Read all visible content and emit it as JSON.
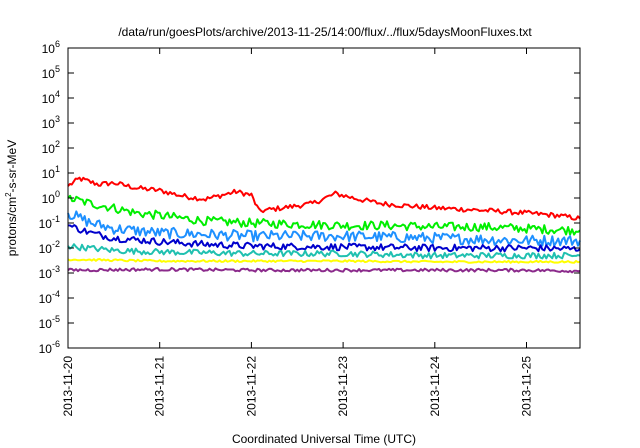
{
  "chart_data": {
    "type": "line",
    "title": "/data/run/goesPlots/archive/2013-11-25/14:00/flux/../flux/5daysMoonFluxes.txt",
    "xlabel": "Coordinated Universal Time (UTC)",
    "ylabel": "protons/cm²-s-sr-MeV",
    "y_scale": "log",
    "ylim": [
      1e-06,
      1000000.0
    ],
    "y_ticks": [
      {
        "value": 1000000.0,
        "base": "10",
        "exp": "6"
      },
      {
        "value": 100000.0,
        "base": "10",
        "exp": "5"
      },
      {
        "value": 10000.0,
        "base": "10",
        "exp": "4"
      },
      {
        "value": 1000.0,
        "base": "10",
        "exp": "3"
      },
      {
        "value": 100.0,
        "base": "10",
        "exp": "2"
      },
      {
        "value": 10.0,
        "base": "10",
        "exp": "1"
      },
      {
        "value": 1.0,
        "base": "10",
        "exp": "0"
      },
      {
        "value": 0.1,
        "base": "10",
        "exp": "-1"
      },
      {
        "value": 0.01,
        "base": "10",
        "exp": "-2"
      },
      {
        "value": 0.001,
        "base": "10",
        "exp": "-3"
      },
      {
        "value": 0.0001,
        "base": "10",
        "exp": "-4"
      },
      {
        "value": 1e-05,
        "base": "10",
        "exp": "-5"
      },
      {
        "value": 1e-06,
        "base": "10",
        "exp": "-6"
      }
    ],
    "x_ticks": [
      "2013-11-20",
      "2013-11-21",
      "2013-11-22",
      "2013-11-23",
      "2013-11-24",
      "2013-11-25"
    ],
    "xlim": [
      "2013-11-20T00:00",
      "2013-11-25T14:00"
    ],
    "grid": false,
    "legend": "none",
    "series": [
      {
        "color": "#ff0000",
        "points": [
          [
            "2013-11-20T00:00",
            3
          ],
          [
            "2013-11-20T03:00",
            6
          ],
          [
            "2013-11-20T08:00",
            3.5
          ],
          [
            "2013-11-20T12:00",
            4
          ],
          [
            "2013-11-20T18:00",
            2.5
          ],
          [
            "2013-11-21T00:00",
            2
          ],
          [
            "2013-11-21T06:00",
            1.2
          ],
          [
            "2013-11-21T12:00",
            0.9
          ],
          [
            "2013-11-21T18:00",
            1.5
          ],
          [
            "2013-11-21T20:00",
            1.8
          ],
          [
            "2013-11-22T00:00",
            1.3
          ],
          [
            "2013-11-22T02:00",
            0.3
          ],
          [
            "2013-11-22T08:00",
            0.4
          ],
          [
            "2013-11-22T16:00",
            0.6
          ],
          [
            "2013-11-22T22:00",
            1.5
          ],
          [
            "2013-11-23T04:00",
            0.9
          ],
          [
            "2013-11-23T10:00",
            0.6
          ],
          [
            "2013-11-23T16:00",
            0.5
          ],
          [
            "2013-11-24T00:00",
            0.4
          ],
          [
            "2013-11-24T08:00",
            0.35
          ],
          [
            "2013-11-24T16:00",
            0.3
          ],
          [
            "2013-11-25T00:00",
            0.25
          ],
          [
            "2013-11-25T08:00",
            0.2
          ],
          [
            "2013-11-25T14:00",
            0.15
          ]
        ]
      },
      {
        "color": "#00ee00",
        "points": [
          [
            "2013-11-20T00:00",
            1
          ],
          [
            "2013-11-20T06:00",
            0.6
          ],
          [
            "2013-11-20T12:00",
            0.4
          ],
          [
            "2013-11-20T18:00",
            0.25
          ],
          [
            "2013-11-21T00:00",
            0.2
          ],
          [
            "2013-11-21T12:00",
            0.12
          ],
          [
            "2013-11-22T00:00",
            0.1
          ],
          [
            "2013-11-22T12:00",
            0.09
          ],
          [
            "2013-11-23T00:00",
            0.08
          ],
          [
            "2013-11-23T12:00",
            0.08
          ],
          [
            "2013-11-24T00:00",
            0.07
          ],
          [
            "2013-11-24T12:00",
            0.07
          ],
          [
            "2013-11-25T00:00",
            0.06
          ],
          [
            "2013-11-25T14:00",
            0.05
          ]
        ]
      },
      {
        "color": "#1e90ff",
        "points": [
          [
            "2013-11-20T00:00",
            0.25
          ],
          [
            "2013-11-20T06:00",
            0.1
          ],
          [
            "2013-11-20T12:00",
            0.06
          ],
          [
            "2013-11-21T00:00",
            0.04
          ],
          [
            "2013-11-21T12:00",
            0.035
          ],
          [
            "2013-11-22T00:00",
            0.03
          ],
          [
            "2013-11-23T00:00",
            0.03
          ],
          [
            "2013-11-24T00:00",
            0.025
          ],
          [
            "2013-11-25T00:00",
            0.02
          ],
          [
            "2013-11-25T14:00",
            0.02
          ]
        ]
      },
      {
        "color": "#0000cc",
        "points": [
          [
            "2013-11-20T00:00",
            0.08
          ],
          [
            "2013-11-20T06:00",
            0.04
          ],
          [
            "2013-11-20T12:00",
            0.025
          ],
          [
            "2013-11-21T00:00",
            0.018
          ],
          [
            "2013-11-21T12:00",
            0.014
          ],
          [
            "2013-11-22T00:00",
            0.012
          ],
          [
            "2013-11-23T00:00",
            0.011
          ],
          [
            "2013-11-24T00:00",
            0.01
          ],
          [
            "2013-11-25T00:00",
            0.01
          ],
          [
            "2013-11-25T14:00",
            0.009
          ]
        ]
      },
      {
        "color": "#20c0b0",
        "points": [
          [
            "2013-11-20T00:00",
            0.012
          ],
          [
            "2013-11-20T12:00",
            0.008
          ],
          [
            "2013-11-21T00:00",
            0.007
          ],
          [
            "2013-11-22T00:00",
            0.006
          ],
          [
            "2013-11-23T00:00",
            0.006
          ],
          [
            "2013-11-24T00:00",
            0.005
          ],
          [
            "2013-11-25T00:00",
            0.005
          ],
          [
            "2013-11-25T14:00",
            0.005
          ]
        ]
      },
      {
        "color": "#ffff00",
        "points": [
          [
            "2013-11-20T00:00",
            0.0035
          ],
          [
            "2013-11-21T00:00",
            0.003
          ],
          [
            "2013-11-22T00:00",
            0.003
          ],
          [
            "2013-11-23T00:00",
            0.003
          ],
          [
            "2013-11-24T00:00",
            0.0028
          ],
          [
            "2013-11-25T00:00",
            0.0028
          ],
          [
            "2013-11-25T14:00",
            0.0028
          ]
        ]
      },
      {
        "color": "#8b2a8b",
        "points": [
          [
            "2013-11-20T00:00",
            0.0013
          ],
          [
            "2013-11-21T00:00",
            0.0014
          ],
          [
            "2013-11-22T00:00",
            0.0013
          ],
          [
            "2013-11-23T00:00",
            0.0013
          ],
          [
            "2013-11-24T00:00",
            0.0013
          ],
          [
            "2013-11-25T00:00",
            0.0013
          ],
          [
            "2013-11-25T14:00",
            0.0012
          ]
        ]
      }
    ]
  }
}
